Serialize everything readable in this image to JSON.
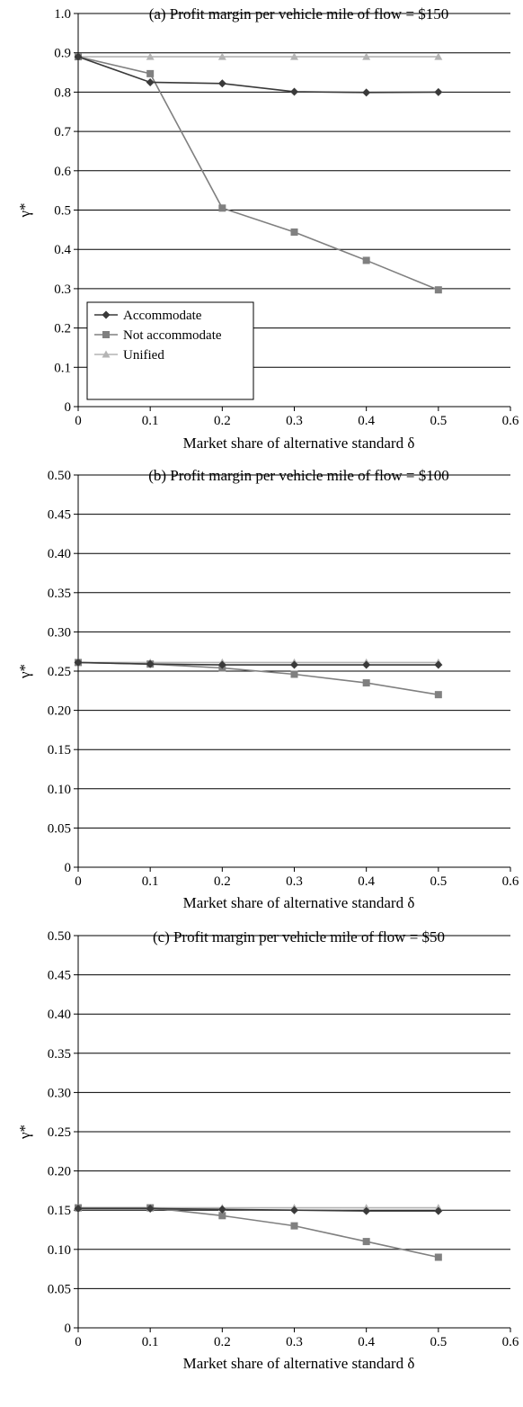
{
  "chart_data": [
    {
      "type": "line",
      "title": "(a) Profit margin per vehicle mile of flow = $150",
      "xlabel": "Market share of alternative standard δ",
      "ylabel": "γ*",
      "xlim": [
        0,
        0.6
      ],
      "ylim": [
        0,
        1.0
      ],
      "x_ticks": [
        "0",
        "0.1",
        "0.2",
        "0.3",
        "0.4",
        "0.5",
        "0.6"
      ],
      "y_ticks": [
        "0",
        "0.1",
        "0.2",
        "0.3",
        "0.4",
        "0.5",
        "0.6",
        "0.7",
        "0.8",
        "0.9",
        "1.0"
      ],
      "grid": "horizontal",
      "legend": "bottom-left",
      "x": [
        0,
        0.1,
        0.2,
        0.3,
        0.4,
        0.5
      ],
      "series": [
        {
          "name": "Accommodate",
          "values": [
            0.89,
            0.825,
            0.822,
            0.801,
            0.799,
            0.8
          ],
          "color": "#3a3a3a",
          "marker": "diamond"
        },
        {
          "name": "Not accommodate",
          "values": [
            0.89,
            0.847,
            0.505,
            0.444,
            0.372,
            0.297
          ],
          "color": "#808080",
          "marker": "square"
        },
        {
          "name": "Unified",
          "values": [
            0.89,
            0.89,
            0.89,
            0.89,
            0.89,
            0.89
          ],
          "color": "#b4b4b4",
          "marker": "triangle"
        }
      ]
    },
    {
      "type": "line",
      "title": "(b) Profit margin per vehicle mile of flow = $100",
      "xlabel": "Market share of alternative standard δ",
      "ylabel": "γ*",
      "xlim": [
        0,
        0.6
      ],
      "ylim": [
        0,
        0.5
      ],
      "x_ticks": [
        "0",
        "0.1",
        "0.2",
        "0.3",
        "0.4",
        "0.5",
        "0.6"
      ],
      "y_ticks": [
        "0",
        "0.05",
        "0.10",
        "0.15",
        "0.20",
        "0.25",
        "0.30",
        "0.35",
        "0.40",
        "0.45",
        "0.50"
      ],
      "grid": "horizontal",
      "legend": "none",
      "x": [
        0,
        0.1,
        0.2,
        0.3,
        0.4,
        0.5
      ],
      "series": [
        {
          "name": "Accommodate",
          "values": [
            0.261,
            0.259,
            0.258,
            0.258,
            0.258,
            0.258
          ],
          "color": "#3a3a3a",
          "marker": "diamond"
        },
        {
          "name": "Not accommodate",
          "values": [
            0.261,
            0.259,
            0.254,
            0.246,
            0.235,
            0.22
          ],
          "color": "#808080",
          "marker": "square"
        },
        {
          "name": "Unified",
          "values": [
            0.261,
            0.261,
            0.261,
            0.261,
            0.261,
            0.261
          ],
          "color": "#b4b4b4",
          "marker": "triangle"
        }
      ]
    },
    {
      "type": "line",
      "title": "(c) Profit margin per vehicle mile of flow = $50",
      "xlabel": "Market share of alternative standard δ",
      "ylabel": "γ*",
      "xlim": [
        0,
        0.6
      ],
      "ylim": [
        0,
        0.5
      ],
      "x_ticks": [
        "0",
        "0.1",
        "0.2",
        "0.3",
        "0.4",
        "0.5",
        "0.6"
      ],
      "y_ticks": [
        "0",
        "0.05",
        "0.10",
        "0.15",
        "0.20",
        "0.25",
        "0.30",
        "0.35",
        "0.40",
        "0.45",
        "0.50"
      ],
      "grid": "horizontal",
      "legend": "none",
      "x": [
        0,
        0.1,
        0.2,
        0.3,
        0.4,
        0.5
      ],
      "series": [
        {
          "name": "Accommodate",
          "values": [
            0.152,
            0.152,
            0.151,
            0.15,
            0.149,
            0.149
          ],
          "color": "#3a3a3a",
          "marker": "diamond"
        },
        {
          "name": "Not accommodate",
          "values": [
            0.153,
            0.153,
            0.143,
            0.13,
            0.11,
            0.09
          ],
          "color": "#808080",
          "marker": "square"
        },
        {
          "name": "Unified",
          "values": [
            0.153,
            0.153,
            0.153,
            0.153,
            0.153,
            0.153
          ],
          "color": "#b4b4b4",
          "marker": "triangle"
        }
      ]
    }
  ]
}
